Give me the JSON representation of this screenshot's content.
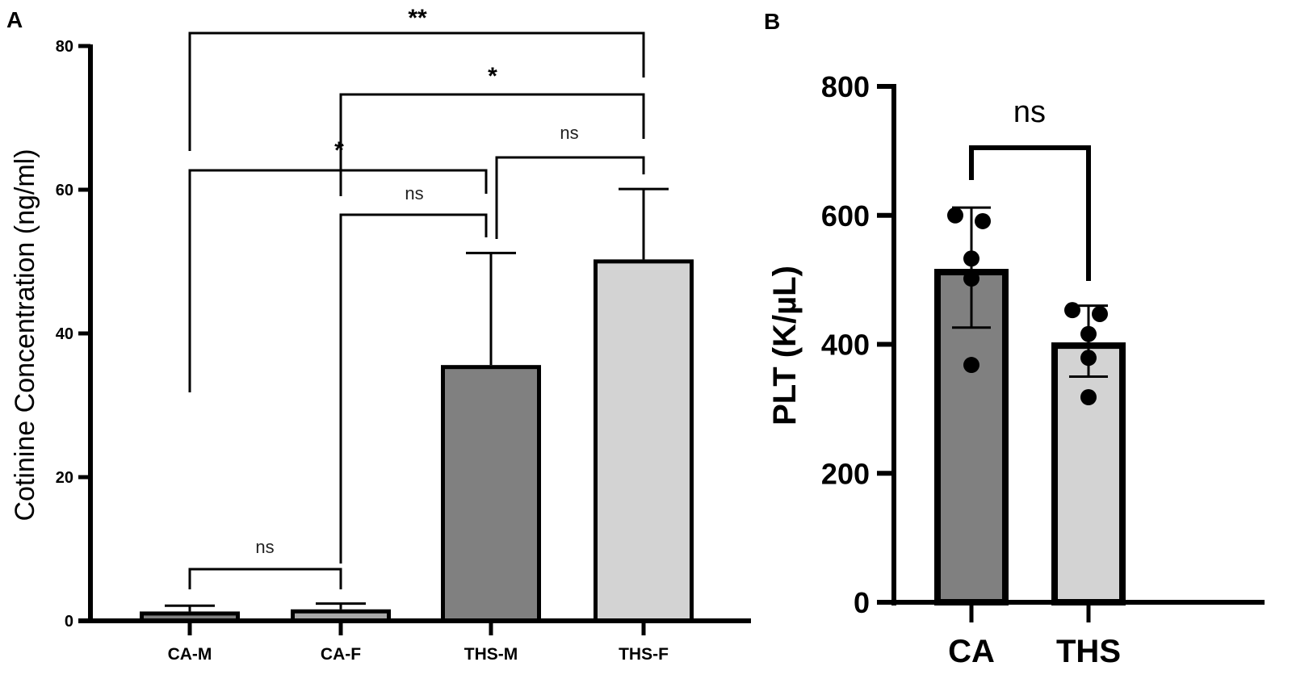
{
  "chart_data": [
    {
      "panel": "A",
      "type": "bar",
      "title": "",
      "xlabel": "",
      "ylabel": "Cotinine Concentration (ng/ml)",
      "ylim": [
        0,
        80
      ],
      "yticks": [
        0,
        20,
        40,
        60,
        80
      ],
      "categories": [
        "CA-M",
        "CA-F",
        "THS-M",
        "THS-F"
      ],
      "values": [
        1.3,
        1.6,
        35.6,
        50.3
      ],
      "error_upper": [
        2.1,
        2.4,
        51.2,
        60.1
      ],
      "colors": [
        "#808080",
        "#a9a9a9",
        "#808080",
        "#d3d3d3"
      ],
      "grid": false,
      "comparisons": [
        {
          "a": "CA-M",
          "b": "CA-F",
          "label": "ns"
        },
        {
          "a": "CA-F",
          "b": "THS-M",
          "label": "ns"
        },
        {
          "a": "CA-M",
          "b": "THS-M",
          "label": "*"
        },
        {
          "a": "THS-M",
          "b": "THS-F",
          "label": "ns"
        },
        {
          "a": "CA-F",
          "b": "THS-F",
          "label": "*"
        },
        {
          "a": "CA-M",
          "b": "THS-F",
          "label": "**"
        }
      ]
    },
    {
      "panel": "B",
      "type": "bar",
      "title": "",
      "xlabel": "",
      "ylabel": "PLT (K/µL)",
      "ylim": [
        0,
        800
      ],
      "yticks": [
        0,
        200,
        400,
        600,
        800
      ],
      "categories": [
        "CA",
        "THS"
      ],
      "values": [
        517,
        403
      ],
      "error_upper": [
        612,
        460
      ],
      "error_lower": [
        426,
        350
      ],
      "points": [
        [
          600,
          591,
          533,
          502,
          368
        ],
        [
          453,
          447,
          416,
          379,
          318
        ]
      ],
      "colors": [
        "#808080",
        "#d3d3d3"
      ],
      "grid": false,
      "comparisons": [
        {
          "a": "CA",
          "b": "THS",
          "label": "ns"
        }
      ]
    }
  ]
}
